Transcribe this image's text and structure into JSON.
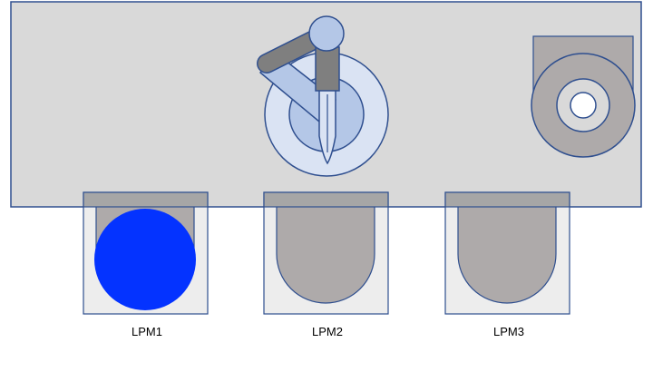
{
  "colors": {
    "chamber_fill": "#d9d9d9",
    "outline": "#2f4f8f",
    "port_gray": "#aeaaaa",
    "port_bar": "#a6a6a6",
    "port_box": "#ededed",
    "wafer_blue": "#0433ff",
    "robot_light": "#b4c7e7",
    "robot_pale": "#dae3f3",
    "arm_dark": "#7f7f7f"
  },
  "load_ports": [
    {
      "label": "LPM1",
      "has_wafer": true
    },
    {
      "label": "LPM2",
      "has_wafer": false
    },
    {
      "label": "LPM3",
      "has_wafer": false
    }
  ]
}
